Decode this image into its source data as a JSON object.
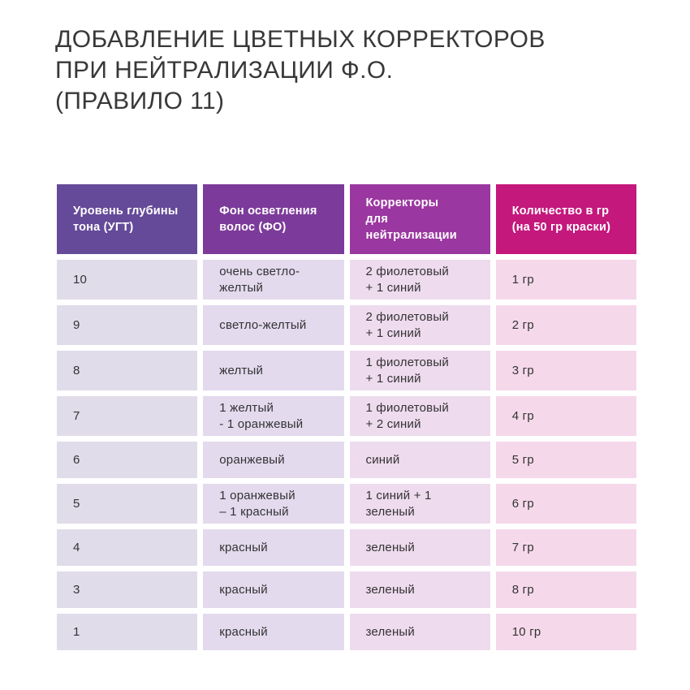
{
  "title": "ДОБАВЛЕНИЕ ЦВЕТНЫХ КОРРЕКТОРОВ\nПРИ НЕЙТРАЛИЗАЦИИ Ф.О.\n(ПРАВИЛО 11)",
  "colors": {
    "background": "#ffffff",
    "title_text": "#383838",
    "body_text": "#333333",
    "header_text": "#ffffff",
    "header_columns": [
      "#654a99",
      "#7c3b9a",
      "#9b37a0",
      "#c4187c"
    ],
    "body_columns": [
      "#e1dcea",
      "#e3daee",
      "#eedbee",
      "#f5d9ea"
    ]
  },
  "table": {
    "headers": [
      "Уровень глубины\nтона (УГТ)",
      "Фон осветления\nволос (ФО)",
      "Корректоры\nдля нейтрализации",
      "Количество в гр\n(на 50 гр краски)"
    ],
    "rows": [
      [
        "10",
        "очень светло-желтый",
        "2 фиолетовый\n+ 1 синий",
        "1 гр"
      ],
      [
        "9",
        "светло-желтый",
        "2 фиолетовый\n+ 1 синий",
        "2 гр"
      ],
      [
        "8",
        "желтый",
        "1 фиолетовый\n+ 1 синий",
        "3 гр"
      ],
      [
        "7",
        "1 желтый\n- 1 оранжевый",
        "1 фиолетовый\n+ 2 синий",
        "4 гр"
      ],
      [
        "6",
        "оранжевый",
        "синий",
        "5 гр"
      ],
      [
        "5",
        "1 оранжевый\n– 1 красный",
        "1 синий + 1 зеленый",
        "6 гр"
      ],
      [
        "4",
        "красный",
        "зеленый",
        "7 гр"
      ],
      [
        "3",
        "красный",
        "зеленый",
        "8 гр"
      ],
      [
        "1",
        "красный",
        "зеленый",
        "10 гр"
      ]
    ]
  }
}
